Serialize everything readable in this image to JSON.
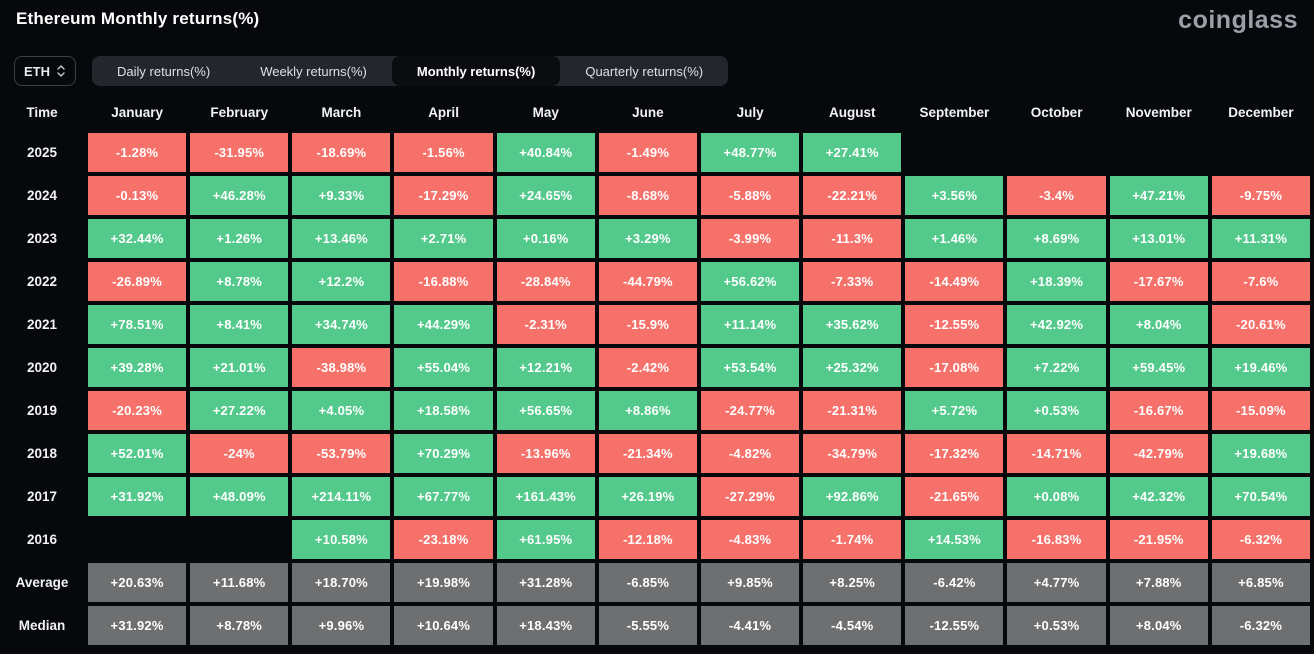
{
  "header": {
    "title": "Ethereum Monthly returns(%)",
    "logo": "coinglass"
  },
  "controls": {
    "symbol_select": {
      "value": "ETH",
      "icon": "updown-chevron-icon"
    },
    "tabs": [
      {
        "label": "Daily returns(%)",
        "active": false
      },
      {
        "label": "Weekly returns(%)",
        "active": false
      },
      {
        "label": "Monthly returns(%)",
        "active": true
      },
      {
        "label": "Quarterly returns(%)",
        "active": false
      }
    ]
  },
  "colors": {
    "background": "#06080C",
    "positive": "#53CA8B",
    "negative": "#F7716B",
    "summary": "#6D6F71"
  },
  "table": {
    "columns": [
      "Time",
      "January",
      "February",
      "March",
      "April",
      "May",
      "June",
      "July",
      "August",
      "September",
      "October",
      "November",
      "December"
    ],
    "rows": [
      {
        "label": "2025",
        "type": "year",
        "values": [
          "-1.28%",
          "-31.95%",
          "-18.69%",
          "-1.56%",
          "+40.84%",
          "-1.49%",
          "+48.77%",
          "+27.41%",
          "",
          "",
          "",
          ""
        ]
      },
      {
        "label": "2024",
        "type": "year",
        "values": [
          "-0.13%",
          "+46.28%",
          "+9.33%",
          "-17.29%",
          "+24.65%",
          "-8.68%",
          "-5.88%",
          "-22.21%",
          "+3.56%",
          "-3.4%",
          "+47.21%",
          "-9.75%"
        ]
      },
      {
        "label": "2023",
        "type": "year",
        "values": [
          "+32.44%",
          "+1.26%",
          "+13.46%",
          "+2.71%",
          "+0.16%",
          "+3.29%",
          "-3.99%",
          "-11.3%",
          "+1.46%",
          "+8.69%",
          "+13.01%",
          "+11.31%"
        ]
      },
      {
        "label": "2022",
        "type": "year",
        "values": [
          "-26.89%",
          "+8.78%",
          "+12.2%",
          "-16.88%",
          "-28.84%",
          "-44.79%",
          "+56.62%",
          "-7.33%",
          "-14.49%",
          "+18.39%",
          "-17.67%",
          "-7.6%"
        ]
      },
      {
        "label": "2021",
        "type": "year",
        "values": [
          "+78.51%",
          "+8.41%",
          "+34.74%",
          "+44.29%",
          "-2.31%",
          "-15.9%",
          "+11.14%",
          "+35.62%",
          "-12.55%",
          "+42.92%",
          "+8.04%",
          "-20.61%"
        ]
      },
      {
        "label": "2020",
        "type": "year",
        "values": [
          "+39.28%",
          "+21.01%",
          "-38.98%",
          "+55.04%",
          "+12.21%",
          "-2.42%",
          "+53.54%",
          "+25.32%",
          "-17.08%",
          "+7.22%",
          "+59.45%",
          "+19.46%"
        ]
      },
      {
        "label": "2019",
        "type": "year",
        "values": [
          "-20.23%",
          "+27.22%",
          "+4.05%",
          "+18.58%",
          "+56.65%",
          "+8.86%",
          "-24.77%",
          "-21.31%",
          "+5.72%",
          "+0.53%",
          "-16.67%",
          "-15.09%"
        ]
      },
      {
        "label": "2018",
        "type": "year",
        "values": [
          "+52.01%",
          "-24%",
          "-53.79%",
          "+70.29%",
          "-13.96%",
          "-21.34%",
          "-4.82%",
          "-34.79%",
          "-17.32%",
          "-14.71%",
          "-42.79%",
          "+19.68%"
        ]
      },
      {
        "label": "2017",
        "type": "year",
        "values": [
          "+31.92%",
          "+48.09%",
          "+214.11%",
          "+67.77%",
          "+161.43%",
          "+26.19%",
          "-27.29%",
          "+92.86%",
          "-21.65%",
          "+0.08%",
          "+42.32%",
          "+70.54%"
        ]
      },
      {
        "label": "2016",
        "type": "year",
        "values": [
          "",
          "",
          "+10.58%",
          "-23.18%",
          "+61.95%",
          "-12.18%",
          "-4.83%",
          "-1.74%",
          "+14.53%",
          "-16.83%",
          "-21.95%",
          "-6.32%"
        ]
      },
      {
        "label": "Average",
        "type": "summary",
        "values": [
          "+20.63%",
          "+11.68%",
          "+18.70%",
          "+19.98%",
          "+31.28%",
          "-6.85%",
          "+9.85%",
          "+8.25%",
          "-6.42%",
          "+4.77%",
          "+7.88%",
          "+6.85%"
        ]
      },
      {
        "label": "Median",
        "type": "summary",
        "values": [
          "+31.92%",
          "+8.78%",
          "+9.96%",
          "+10.64%",
          "+18.43%",
          "-5.55%",
          "-4.41%",
          "-4.54%",
          "-12.55%",
          "+0.53%",
          "+8.04%",
          "-6.32%"
        ]
      }
    ]
  }
}
